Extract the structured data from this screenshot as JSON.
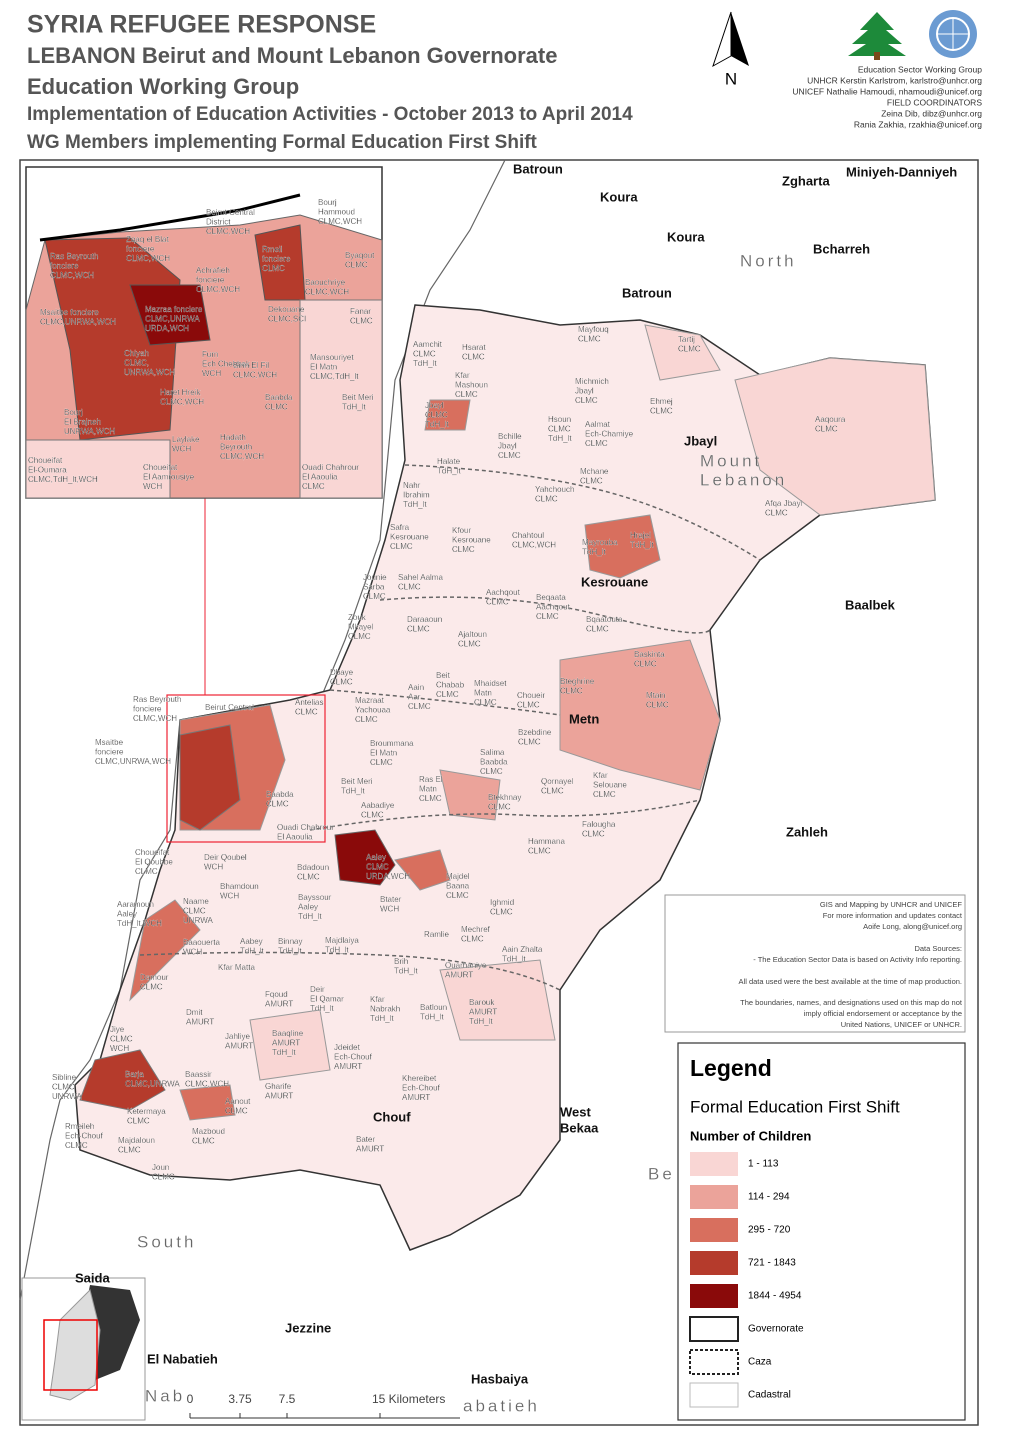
{
  "header": {
    "title": "SYRIA REFUGEE RESPONSE",
    "country": "LEBANON",
    "area": "Beirut and Mount Lebanon Governorate",
    "group": "Education Working Group",
    "line1": "Implementation of Education Activities - October 2013 to April 2014",
    "line2": "WG Members implementing Formal Education First Shift"
  },
  "north": "N",
  "contacts": [
    "Education Sector Working Group",
    "UNHCR Kerstin Karlstrom, karlstro@unhcr.org",
    "UNICEF Nathalie Hamoudi, nhamoudi@unicef.org",
    "FIELD COORDINATORS",
    "Zeina Dib, dibz@unhcr.org",
    "Rania Zakhia, rzakhia@unicef.org"
  ],
  "labels": {
    "regions": [
      [
        "Batroun"
      ],
      [
        "Koura"
      ],
      [
        "Zgharta"
      ],
      [
        "Miniyeh-Danniyeh"
      ],
      [
        "Koura"
      ],
      [
        "Bcharreh"
      ],
      [
        "Batroun"
      ],
      [
        "Jbayl"
      ],
      [
        "Kesrouane"
      ],
      [
        "Baalbek"
      ],
      [
        "Metn"
      ],
      [
        "Zahleh"
      ],
      [
        "Chouf"
      ],
      [
        "West",
        "Bekaa"
      ],
      [
        "Jezzine"
      ],
      [
        "El Nabatieh"
      ],
      [
        "Hasbaiya"
      ],
      [
        "Saida"
      ]
    ],
    "gray_regions": [
      [
        "North"
      ],
      [
        "Mount",
        "Lebanon"
      ],
      [
        "South"
      ],
      [
        "Be"
      ],
      [
        "Nab"
      ],
      [
        "abatieh"
      ]
    ],
    "localities": [
      [
        "Mayfouq",
        "CLMC"
      ],
      [
        "Tartij",
        "CLMC"
      ],
      [
        "Aamchit",
        "CLMC",
        "TdH_lt"
      ],
      [
        "Hsarat",
        "CLMC"
      ],
      [
        "Kfar",
        "Mashoun",
        "CLMC"
      ],
      [
        "Michmich",
        "Jbayl",
        "CLMC"
      ],
      [
        "Ehmej",
        "CLMC"
      ],
      [
        "Aaqoura",
        "CLMC"
      ],
      [
        "Jbayl",
        "CLMC",
        "TdH_lt"
      ],
      [
        "Hsoun",
        "CLMC",
        "TdH_lt"
      ],
      [
        "Aalmat",
        "Ech-Chamiye",
        "CLMC"
      ],
      [
        "Bchille",
        "Jbayl",
        "CLMC"
      ],
      [
        "Halate",
        "TdH_lt"
      ],
      [
        "Mchane",
        "CLMC"
      ],
      [
        "Nahr",
        "Ibrahim",
        "TdH_lt"
      ],
      [
        "Yahchouch",
        "CLMC"
      ],
      [
        "Afqa Jbayl",
        "CLMC"
      ],
      [
        "Safra",
        "Kesrouane",
        "CLMC"
      ],
      [
        "Kfour",
        "Kesrouane",
        "CLMC"
      ],
      [
        "Chahtoul",
        "CLMC,WCH"
      ],
      [
        "Mayrouba",
        "TdH_lt"
      ],
      [
        "Hrajel",
        "TdH_lt"
      ],
      [
        "Jounie",
        "Sarba",
        "CLMC"
      ],
      [
        "Sahel Aalma",
        "CLMC"
      ],
      [
        "Aachqout",
        "CLMC"
      ],
      [
        "Beqaata",
        "Aachqout",
        "CLMC"
      ],
      [
        "Zouk",
        "Mkayel",
        "CLMC"
      ],
      [
        "Daraaoun",
        "CLMC"
      ],
      [
        "Bqaatouta",
        "CLMC"
      ],
      [
        "Ajaltoun",
        "CLMC"
      ],
      [
        "Baskinta",
        "CLMC"
      ],
      [
        "Dbaye",
        "CLMC"
      ],
      [
        "Beit",
        "Chabab",
        "CLMC"
      ],
      [
        "Mhaidset",
        "Matn",
        "CLMC"
      ],
      [
        "Aain",
        "Aar",
        "CLMC"
      ],
      [
        "Bteghrine",
        "CLMC"
      ],
      [
        "Mtain",
        "CLMC"
      ],
      [
        "Choueir",
        "CLMC"
      ],
      [
        "Mazraat",
        "Yachouaa",
        "CLMC"
      ],
      [
        "Bzebdine",
        "CLMC"
      ],
      [
        "Broummana",
        "El Matn",
        "CLMC"
      ],
      [
        "Salima",
        "Baabda",
        "CLMC"
      ],
      [
        "Beit Meri",
        "TdH_lt"
      ],
      [
        "Ras El",
        "Matn",
        "CLMC"
      ],
      [
        "Qornayel",
        "CLMC"
      ],
      [
        "Kfar",
        "Selouane",
        "CLMC"
      ],
      [
        "Btekhnay",
        "CLMC"
      ],
      [
        "Aabadiye",
        "CLMC"
      ],
      [
        "Falougha",
        "CLMC"
      ],
      [
        "Hammana",
        "CLMC"
      ],
      [
        "Aaley",
        "CLMC",
        "URDA,WCH"
      ],
      [
        "Bhamdoun",
        "WCH"
      ],
      [
        "Deir Qoubel",
        "WCH"
      ],
      [
        "Choueifat",
        "El Qoubbe",
        "CLMC"
      ],
      [
        "Bdadoun",
        "CLMC"
      ],
      [
        "Majdel",
        "Baana",
        "CLMC"
      ],
      [
        "Bayssour",
        "Aaley",
        "TdH_lt"
      ],
      [
        "Btater",
        "WCH"
      ],
      [
        "Ighmid",
        "CLMC"
      ],
      [
        "Aaramoun",
        "Aaley",
        "TdH_lt,WCH"
      ],
      [
        "Naame",
        "CLMC",
        "UNRWA"
      ],
      [
        "Ramlie"
      ],
      [
        "Mechref",
        "CLMC"
      ],
      [
        "Aain Zhalta",
        "TdH_lt"
      ],
      [
        "Baaouerta",
        "WCH"
      ],
      [
        "Aabey",
        "TdH_lt"
      ],
      [
        "Binnay",
        "TdH_lt"
      ],
      [
        "Majdlaiya",
        "TdH_lt"
      ],
      [
        "Brih",
        "TdH_lt"
      ],
      [
        "Ouarhaniye",
        "AMURT"
      ],
      [
        "Damour",
        "CLMC"
      ],
      [
        "Kfar Matta"
      ],
      [
        "Deir",
        "El Qamar",
        "TdH_lt"
      ],
      [
        "Kfar",
        "Nabrakh",
        "TdH_lt"
      ],
      [
        "Batloun",
        "TdH_lt"
      ],
      [
        "Barouk",
        "AMURT",
        "TdH_lt"
      ],
      [
        "Fqoud",
        "AMURT"
      ],
      [
        "Dmit",
        "AMURT"
      ],
      [
        "Jiye",
        "CLMC",
        "WCH"
      ],
      [
        "Baaqline",
        "AMURT",
        "TdH_lt"
      ],
      [
        "Jahliye",
        "AMURT"
      ],
      [
        "Jdeidet",
        "Ech-Chouf",
        "AMURT"
      ],
      [
        "Sibline",
        "CLMC",
        "UNRWA"
      ],
      [
        "Barja",
        "CLMC,UNRWA"
      ],
      [
        "Baassir",
        "CLMC,WCH"
      ],
      [
        "Ketermaya",
        "CLMC"
      ],
      [
        "Gharife",
        "AMURT"
      ],
      [
        "Khereibet",
        "Ech-Chouf",
        "AMURT"
      ],
      [
        "Aanout",
        "CLMC"
      ],
      [
        "Rmeileh",
        "Ech-Chouf",
        "CLMC"
      ],
      [
        "Majdaloun",
        "CLMC"
      ],
      [
        "Mazboud",
        "CLMC"
      ],
      [
        "Bater",
        "AMURT"
      ],
      [
        "Joun",
        "CLMC"
      ],
      [
        "Ras Beyrouth",
        "fonciere",
        "CLMC,WCH"
      ],
      [
        "Beirut Central"
      ],
      [
        "Antelias",
        "CLMC"
      ],
      [
        "Msaitbe",
        "fonciere",
        "CLMC,UNRWA,WCH"
      ],
      [
        "Baabda",
        "CLMC"
      ],
      [
        "Ouadi Chahrour",
        "El Aaoulia"
      ]
    ],
    "inset": [
      [
        "Bourj",
        "Hammoud",
        "CLMC,WCH"
      ],
      [
        "Beirut Central",
        "District",
        "CLMC,WCH"
      ],
      [
        "Zqaq el Blat",
        "fonciere",
        "CLMC,WCH"
      ],
      [
        "Ras Beyrouth",
        "fonciere",
        "CLMC,WCH"
      ],
      [
        "Rmeil",
        "fonciere",
        "CLMC"
      ],
      [
        "Byaqout",
        "CLMC"
      ],
      [
        "Achrafieh",
        "fonciere",
        "CLMC,WCH"
      ],
      [
        "Baouchriye",
        "CLMC,WCH"
      ],
      [
        "Msaitbe fonciere",
        "CLMC,UNRWA,WCH"
      ],
      [
        "Mazraa fonciere",
        "CLMC,UNRWA",
        "URDA,WCH"
      ],
      [
        "Dekouane",
        "CLMC,SCI"
      ],
      [
        "Fanar",
        "CLMC"
      ],
      [
        "Chiyah",
        "CLMC,",
        "UNRWA,WCH"
      ],
      [
        "Furn",
        "Ech Chebbak",
        "WCH"
      ],
      [
        "Sinn El Fil",
        "CLMC,WCH"
      ],
      [
        "Mansouriyet",
        "El Matn",
        "CLMC,TdH_lt"
      ],
      [
        "Haret Hreik",
        "CLMC,WCH"
      ],
      [
        "Baabda",
        "CLMC"
      ],
      [
        "Beit Meri",
        "TdH_lt"
      ],
      [
        "Bourj",
        "El Brajneh",
        "UNRWA,WCH"
      ],
      [
        "Laylake",
        "WCH"
      ],
      [
        "Hadath",
        "Beyrouth",
        "CLMC,WCH"
      ],
      [
        "Choueifat",
        "El-Oumara",
        "CLMC,TdH_lt,WCH"
      ],
      [
        "Choueifat",
        "El Aamrousiye",
        "WCH"
      ],
      [
        "Ouadi Chahrour",
        "El Aaoulia",
        "CLMC"
      ]
    ]
  },
  "sources": [
    "GIS and Mapping by UNHCR and UNICEF",
    "For more information and updates contact",
    "Aoife Long, along@unicef.org",
    "Data Sources:",
    "- The Education Sector Data is based on Activity Info reporting.",
    "All data used were the best available at the time of map production.",
    "The boundaries, names, and designations used on this map do not",
    "imply official endorsement or acceptance by the",
    "United Nations, UNICEF or UNHCR."
  ],
  "legend": {
    "title": "Legend",
    "subtitle": "Formal Education First Shift",
    "heading": "Number of Children",
    "items": [
      {
        "label": "1 - 113",
        "fill": "#f9d6d4"
      },
      {
        "label": "114 - 294",
        "fill": "#eba39a"
      },
      {
        "label": "295 - 720",
        "fill": "#d86f5e"
      },
      {
        "label": "721 - 1843",
        "fill": "#b53b2c"
      },
      {
        "label": "1844 - 4954",
        "fill": "#8a0a0a"
      },
      {
        "label": "Governorate",
        "fill": "#ffffff",
        "border": "solid"
      },
      {
        "label": "Caza",
        "fill": "#ffffff",
        "border": "dashed"
      },
      {
        "label": "Cadastral",
        "fill": "#ffffff",
        "border": "thin"
      }
    ]
  },
  "scale": [
    "0",
    "3.75",
    "7.5",
    "15 Kilometers"
  ]
}
